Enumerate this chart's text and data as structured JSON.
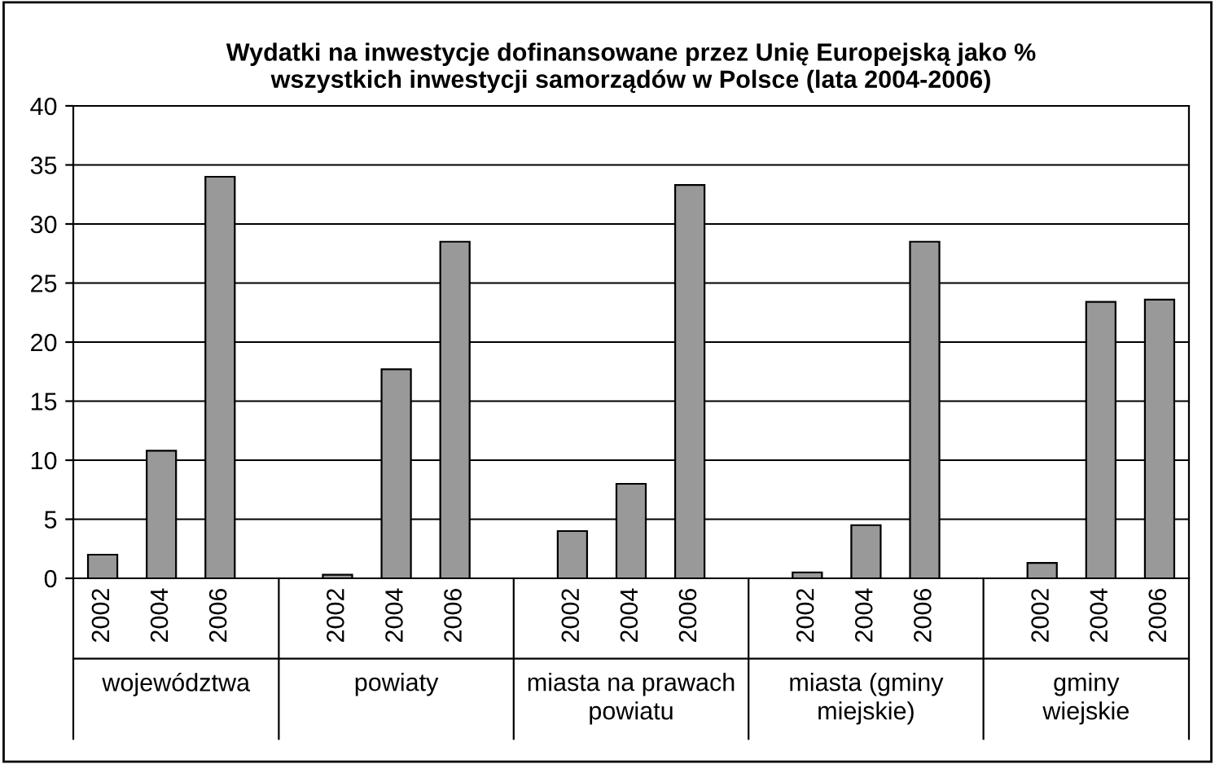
{
  "chart_data": {
    "type": "bar",
    "title": "Wydatki na inwestycje dofinansowane przez Unię Europejską jako %\nwszystkich inwestycji samorządów w Polsce (lata 2004-2006)",
    "categories": [
      "2002",
      "2004",
      "2006",
      null,
      "2002",
      "2004",
      "2006",
      null,
      "2002",
      "2004",
      "2006",
      null,
      "2002",
      "2004",
      "2006",
      null,
      "2002",
      "2004",
      "2006"
    ],
    "values": [
      2.0,
      10.8,
      34.0,
      null,
      0.3,
      17.7,
      28.5,
      null,
      4.0,
      8.0,
      33.3,
      null,
      0.5,
      4.5,
      28.5,
      null,
      1.3,
      23.4,
      23.6
    ],
    "color": "#999999",
    "annotations": [
      "województwa",
      "powiaty",
      "miasta na prawach\npowiatu",
      "miasta (gminy\nmiejskie)",
      "gminy\nwiejskie"
    ],
    "ylim": [
      0,
      40
    ],
    "yticks": [
      0,
      5,
      10,
      15,
      20,
      25,
      30,
      35,
      40
    ],
    "grid": "y",
    "legend": false
  }
}
